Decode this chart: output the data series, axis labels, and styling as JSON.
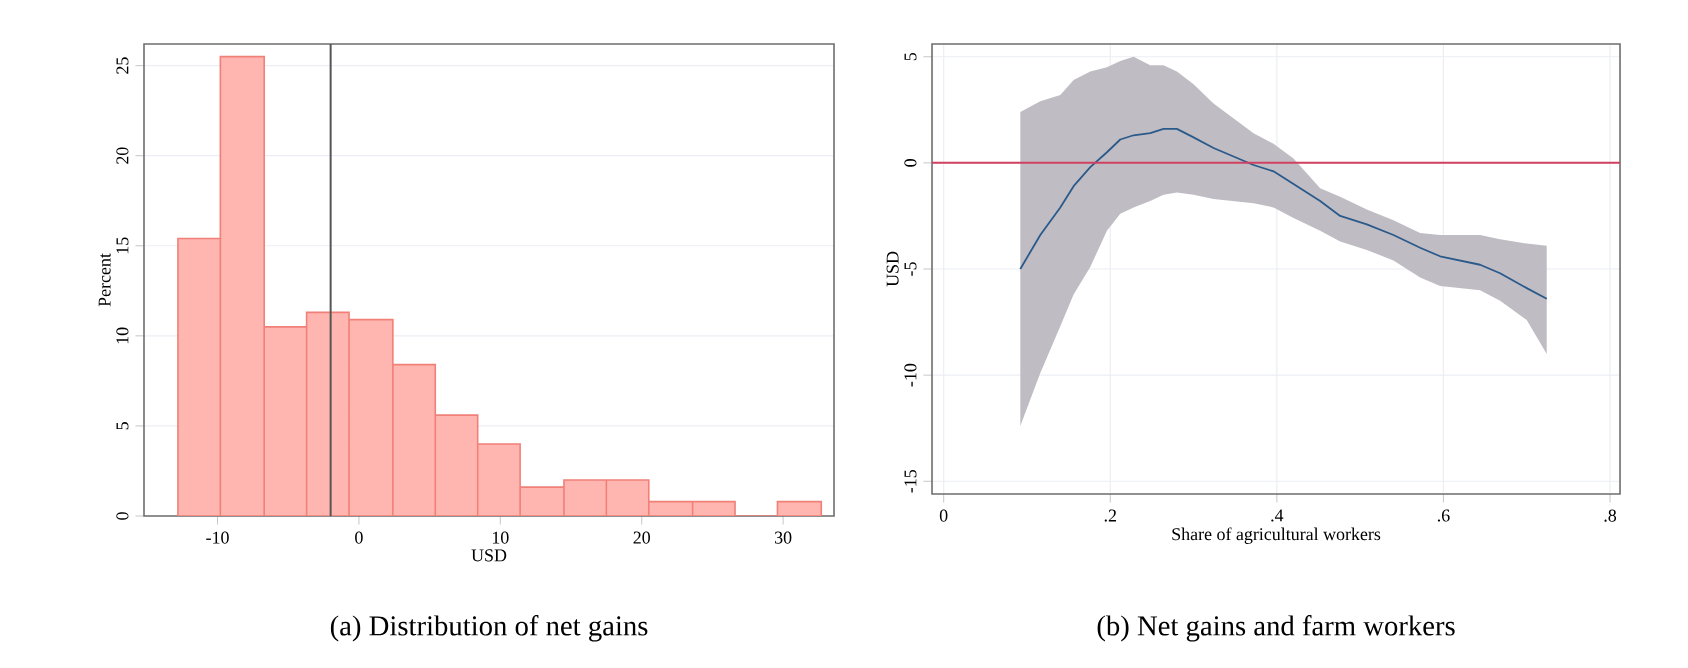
{
  "chart_data": [
    {
      "type": "histogram",
      "title": "(a) Distribution of net gains",
      "xlabel": "USD",
      "ylabel": "Percent",
      "bins": [
        -12.8,
        -9.8,
        -6.7,
        -3.7,
        -0.7,
        2.4,
        5.4,
        8.4,
        11.4,
        14.5,
        17.5,
        20.5,
        23.6,
        26.6,
        29.6,
        32.7
      ],
      "values": [
        15.4,
        25.5,
        10.5,
        11.3,
        10.9,
        8.4,
        5.6,
        4.0,
        1.6,
        2.0,
        2.0,
        0.8,
        0.8,
        0,
        0.8
      ],
      "color": "#ffb6b0",
      "xlim": [
        -15.2,
        33.6
      ],
      "ylim": [
        0,
        26.2
      ],
      "xticks": [
        -10,
        0,
        10,
        20,
        30
      ],
      "yticks": [
        0,
        5,
        10,
        15,
        20,
        25
      ],
      "grid": "y",
      "ref_lines": [
        {
          "axis": "x",
          "value": -2.0,
          "color": "#555555"
        }
      ]
    },
    {
      "type": "line",
      "title": "(b) Net gains and farm workers",
      "xlabel": "Share of agricultural workers",
      "ylabel": "USD",
      "series": [
        {
          "color": "#2a5a8a",
          "x": [
            0.092,
            0.116,
            0.14,
            0.156,
            0.176,
            0.196,
            0.212,
            0.228,
            0.248,
            0.264,
            0.28,
            0.3,
            0.324,
            0.372,
            0.396,
            0.42,
            0.452,
            0.476,
            0.508,
            0.54,
            0.572,
            0.596,
            0.644,
            0.668,
            0.7,
            0.724
          ],
          "values": [
            -5.0,
            -3.4,
            -2.1,
            -1.1,
            -0.2,
            0.5,
            1.1,
            1.3,
            1.4,
            1.6,
            1.6,
            1.2,
            0.7,
            -0.1,
            -0.4,
            -1.0,
            -1.8,
            -2.5,
            -2.9,
            -3.4,
            -4.0,
            -4.4,
            -4.8,
            -5.2,
            -5.9,
            -6.4
          ],
          "upper": [
            2.4,
            2.9,
            3.2,
            3.9,
            4.3,
            4.5,
            4.8,
            5.0,
            4.6,
            4.6,
            4.3,
            3.7,
            2.8,
            1.4,
            0.9,
            0.2,
            -1.2,
            -1.6,
            -2.2,
            -2.7,
            -3.3,
            -3.4,
            -3.4,
            -3.6,
            -3.8,
            -3.9
          ],
          "lower": [
            -12.4,
            -9.9,
            -7.7,
            -6.2,
            -4.9,
            -3.2,
            -2.4,
            -2.1,
            -1.8,
            -1.5,
            -1.4,
            -1.5,
            -1.7,
            -1.9,
            -2.1,
            -2.6,
            -3.2,
            -3.7,
            -4.1,
            -4.6,
            -5.4,
            -5.8,
            -6.0,
            -6.5,
            -7.4,
            -9.0
          ]
        }
      ],
      "xlim": [
        -0.014,
        0.812
      ],
      "ylim": [
        -15.6,
        5.6
      ],
      "xticks": [
        0,
        {
          "value": 0.2,
          "label": ".2"
        },
        {
          "value": 0.4,
          "label": ".4"
        },
        {
          "value": 0.6,
          "label": ".6"
        },
        {
          "value": 0.8,
          "label": ".8"
        }
      ],
      "yticks": [
        -15,
        -10,
        -5,
        0,
        5
      ],
      "grid": true,
      "ref_lines": [
        {
          "axis": "y",
          "value": 0,
          "color": "#d04060"
        }
      ]
    }
  ]
}
